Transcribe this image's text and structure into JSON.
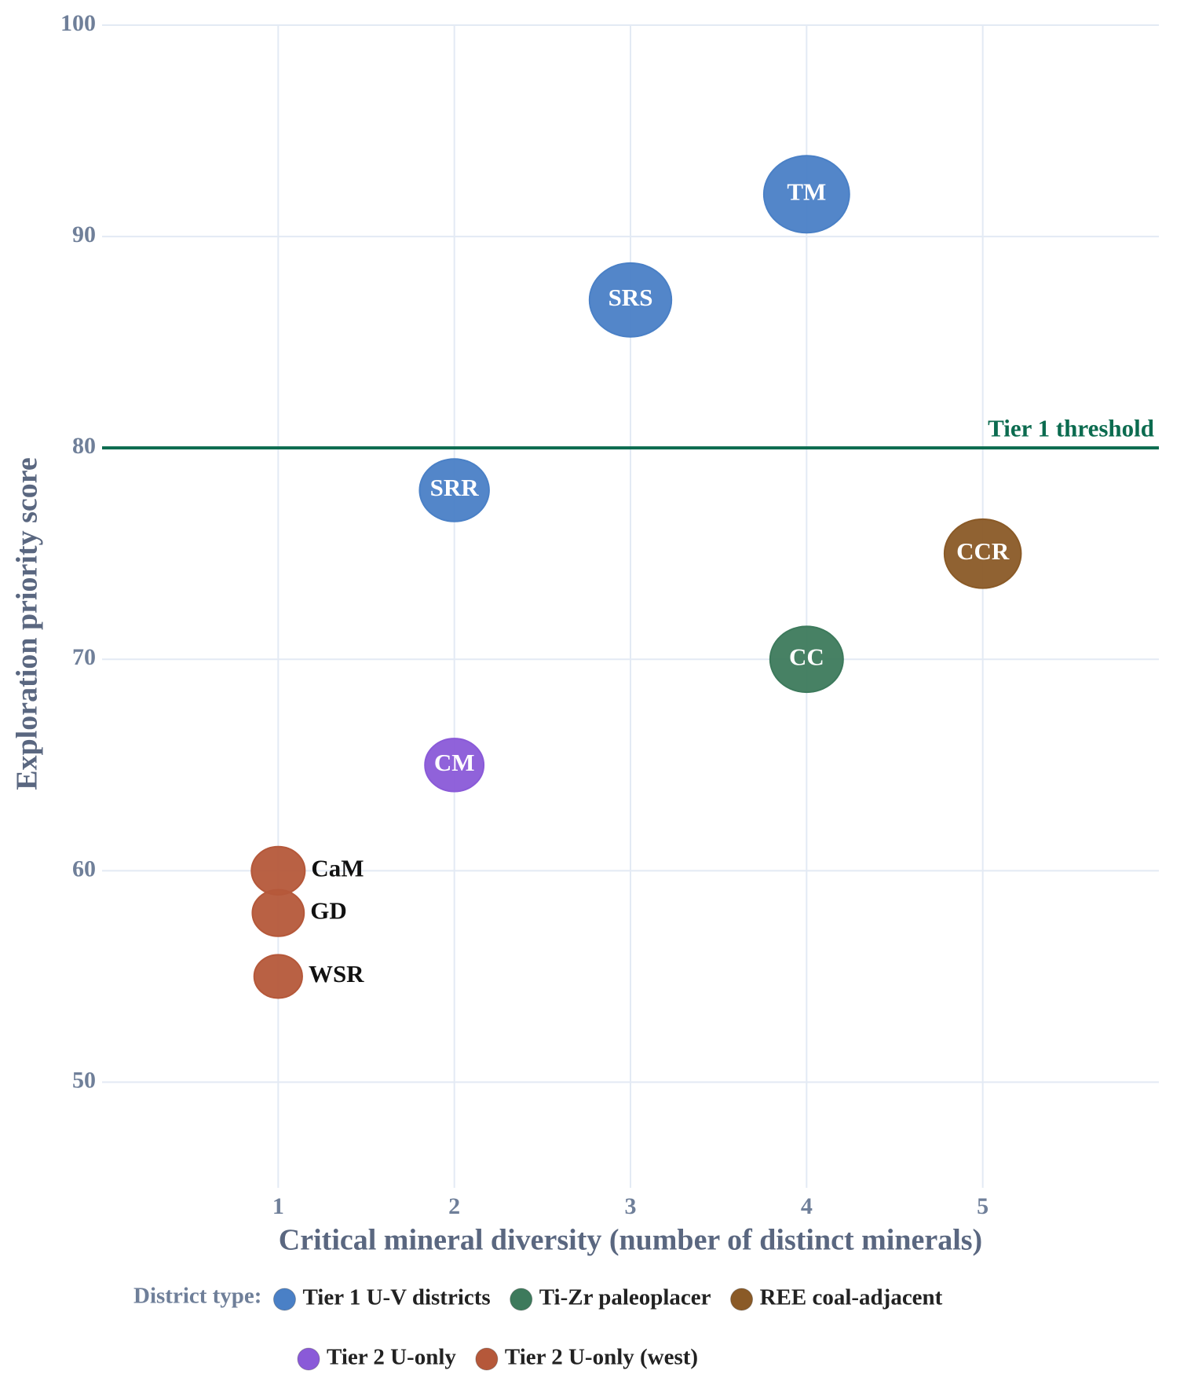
{
  "chart_data": {
    "type": "scatter",
    "x_label": "Critical mineral diversity (number of distinct minerals)",
    "y_label": "Exploration priority score",
    "xlim": [
      0,
      6
    ],
    "ylim": [
      45,
      100
    ],
    "xticks": [
      1,
      2,
      3,
      4,
      5
    ],
    "yticks": [
      50,
      60,
      70,
      80,
      90,
      100
    ],
    "grid": true,
    "legend_title": "District type:",
    "threshold": {
      "value": 80,
      "label": "Tier 1 threshold",
      "color": "#0b6b4f"
    },
    "series": [
      {
        "name": "Tier 1 U-V districts",
        "color": "#4a80c6",
        "x": [
          4,
          3,
          2
        ],
        "values": [
          92,
          87,
          78
        ],
        "sizes": [
          48,
          46,
          39
        ],
        "labels": [
          "TM",
          "SRS",
          "SRR"
        ],
        "label_position": "inside"
      },
      {
        "name": "Ti-Zr paleoplacer",
        "color": "#3d7a5c",
        "x": [
          4
        ],
        "values": [
          70
        ],
        "sizes": [
          41
        ],
        "labels": [
          "CC"
        ],
        "label_position": "inside"
      },
      {
        "name": "REE coal-adjacent",
        "color": "#8a5a27",
        "x": [
          5
        ],
        "values": [
          75
        ],
        "sizes": [
          43
        ],
        "labels": [
          "CCR"
        ],
        "label_position": "inside"
      },
      {
        "name": "Tier 2 U-only",
        "color": "#8a5ad8",
        "x": [
          2
        ],
        "values": [
          65
        ],
        "sizes": [
          33
        ],
        "labels": [
          "CM"
        ],
        "label_position": "inside"
      },
      {
        "name": "Tier 2 U-only (west)",
        "color": "#b5583a",
        "x": [
          1,
          1,
          1
        ],
        "values": [
          60,
          58,
          55
        ],
        "sizes": [
          30,
          29,
          27
        ],
        "labels": [
          "CaM",
          "GD",
          "WSR"
        ],
        "label_position": "right"
      }
    ]
  }
}
